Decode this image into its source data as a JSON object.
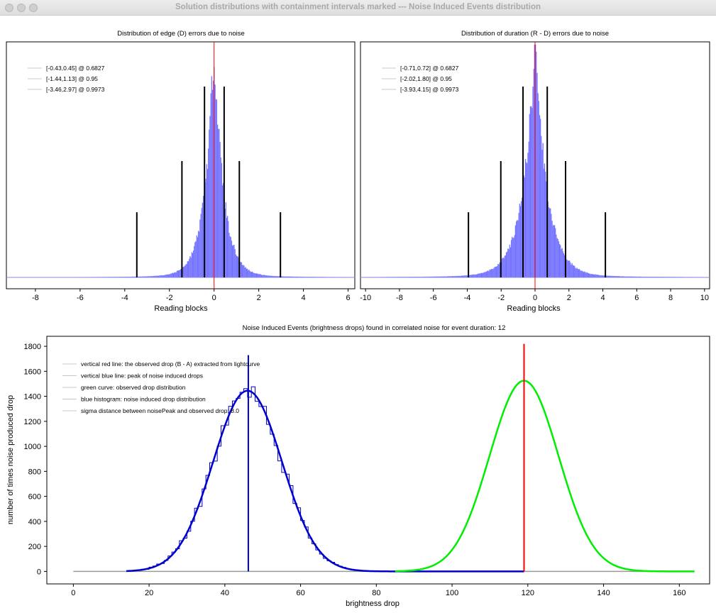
{
  "window": {
    "title": "Solution distributions with containment intervals marked --- Noise Induced Events distribution"
  },
  "chart_data": [
    {
      "type": "bar",
      "title": "Distribution of edge (D) errors due to noise",
      "xlabel": "Reading blocks",
      "ylabel": "",
      "xlim": [
        -9.3,
        6.3
      ],
      "x_ticks": [
        -8,
        -6,
        -4,
        -2,
        0,
        2,
        4,
        6
      ],
      "histogram_color": "#6b6bff",
      "distribution": {
        "peak": 0.0,
        "scale_left": 0.42,
        "scale_right": 0.42,
        "shape": "laplace"
      },
      "observed_line_x": 0,
      "observed_line_color": "#ff0000",
      "interval_lines": [
        {
          "x": -0.43,
          "level": 0.6827
        },
        {
          "x": 0.45,
          "level": 0.6827
        },
        {
          "x": -1.44,
          "level": 0.95
        },
        {
          "x": 1.13,
          "level": 0.95
        },
        {
          "x": -3.46,
          "level": 0.9973
        },
        {
          "x": 2.97,
          "level": 0.9973
        }
      ],
      "legend": [
        "[-0.43,0.45] @ 0.6827",
        "[-1.44,1.13] @ 0.95",
        "[-3.46,2.97] @ 0.9973"
      ],
      "legend_position": "top-left"
    },
    {
      "type": "bar",
      "title": "Distribution of duration (R - D) errors due to noise",
      "xlabel": "Reading blocks",
      "ylabel": "",
      "xlim": [
        -10.3,
        10.3
      ],
      "x_ticks": [
        -10,
        -8,
        -6,
        -4,
        -2,
        0,
        2,
        4,
        6,
        8,
        10
      ],
      "histogram_color": "#6b6bff",
      "distribution": {
        "peak": 0.0,
        "scale_left": 0.72,
        "scale_right": 0.72,
        "shape": "laplace"
      },
      "observed_line_x": 0,
      "observed_line_color": "#ff0000",
      "interval_lines": [
        {
          "x": -0.71,
          "level": 0.6827
        },
        {
          "x": 0.72,
          "level": 0.6827
        },
        {
          "x": -2.02,
          "level": 0.95
        },
        {
          "x": 1.8,
          "level": 0.95
        },
        {
          "x": -3.93,
          "level": 0.9973
        },
        {
          "x": 4.15,
          "level": 0.9973
        }
      ],
      "legend": [
        "[-0.71,0.72] @ 0.6827",
        "[-2.02,1.80] @ 0.95",
        "[-3.93,4.15] @ 0.9973"
      ],
      "legend_position": "top-left"
    },
    {
      "type": "line",
      "title": "Noise Induced Events (brightness drops) found in correlated noise for event duration: 12",
      "xlabel": "brightness drop",
      "ylabel": "number of times noise produced drop",
      "xlim": [
        -7,
        168
      ],
      "ylim": [
        -100,
        1880
      ],
      "x_ticks": [
        0,
        20,
        40,
        60,
        80,
        100,
        120,
        140,
        160
      ],
      "y_ticks": [
        0,
        200,
        400,
        600,
        800,
        1000,
        1200,
        1400,
        1600,
        1800
      ],
      "series": [
        {
          "color": "#0000cc",
          "kind": "histogram",
          "center": 46,
          "sigma": 9.1,
          "amplitude": 1445,
          "x_range": [
            14,
            73
          ]
        },
        {
          "color": "#0000cc",
          "kind": "curve",
          "center": 46,
          "sigma": 9.1,
          "amplitude": 1445,
          "x_range": [
            14,
            119
          ]
        },
        {
          "color": "#00ee00",
          "kind": "curve",
          "center": 119,
          "sigma": 9.1,
          "amplitude": 1525,
          "x_range": [
            85,
            164
          ]
        }
      ],
      "baseline": {
        "x_range": [
          0,
          164
        ],
        "color": "#999999"
      },
      "vertical_lines": [
        {
          "x": 46.2,
          "y_top": 1730,
          "color": "#0000cc"
        },
        {
          "x": 119,
          "y_top": 1820,
          "color": "#ff0000"
        }
      ],
      "legend": [
        "vertical red line: the observed drop (B - A) extracted from lightcurve",
        "vertical blue line: peak of noise induced drops",
        "green curve: observed drop distribution",
        "blue histogram: noise induced drop distribution",
        "sigma distance between noisePeak and observed drop: 8.0"
      ],
      "legend_position": "top-left"
    }
  ]
}
